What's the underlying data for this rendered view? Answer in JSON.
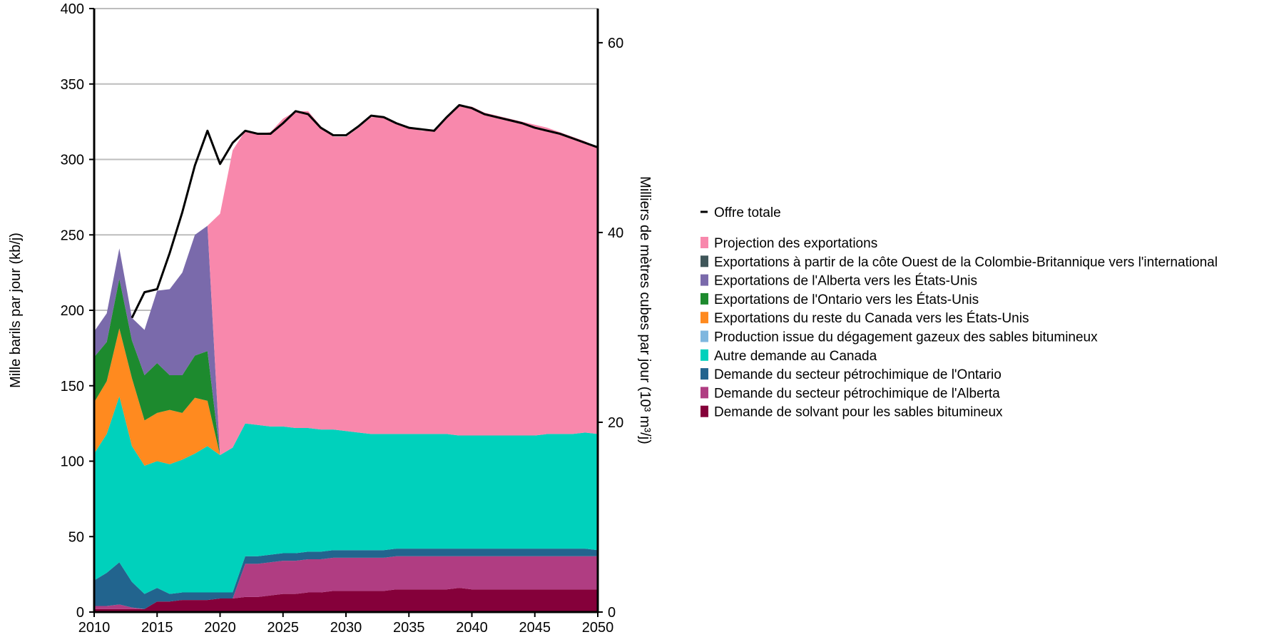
{
  "chart_data": {
    "type": "area",
    "title": "",
    "ylabel_left": "Mille barils par jour (kb/j)",
    "ylabel_right": "Milliers de mètres cubes par jour (10³ m³/j)",
    "ylim_left": [
      0,
      400
    ],
    "ylim_right": [
      0,
      63.6
    ],
    "xlim": [
      2010,
      2050
    ],
    "x_ticks": [
      "2010",
      "2015",
      "2020",
      "2025",
      "2030",
      "2035",
      "2040",
      "2045",
      "2050"
    ],
    "y_ticks_left": [
      "0",
      "50",
      "100",
      "150",
      "200",
      "250",
      "300",
      "350",
      "400"
    ],
    "y_ticks_right": [
      "0",
      "20",
      "40",
      "60"
    ],
    "grid": "horizontal",
    "legend_position": "right",
    "x": [
      2010,
      2011,
      2012,
      2013,
      2014,
      2015,
      2016,
      2017,
      2018,
      2019,
      2020,
      2021,
      2022,
      2023,
      2024,
      2025,
      2026,
      2027,
      2028,
      2029,
      2030,
      2031,
      2032,
      2033,
      2034,
      2035,
      2036,
      2037,
      2038,
      2039,
      2040,
      2041,
      2042,
      2043,
      2044,
      2045,
      2046,
      2047,
      2048,
      2049,
      2050
    ],
    "series": [
      {
        "name": "Demande de solvant pour les sables bitumineux",
        "color": "#85003a",
        "values": [
          2,
          2,
          2,
          2,
          2,
          7,
          7,
          8,
          8,
          8,
          9,
          9,
          10,
          10,
          11,
          12,
          12,
          13,
          13,
          14,
          14,
          14,
          14,
          14,
          15,
          15,
          15,
          15,
          15,
          16,
          15,
          15,
          15,
          15,
          15,
          15,
          15,
          15,
          15,
          15,
          15
        ]
      },
      {
        "name": "Demande du secteur pétrochimique de l'Alberta",
        "color": "#b03d82",
        "values": [
          2,
          2,
          3,
          1,
          0,
          0,
          0,
          0,
          0,
          0,
          0,
          0,
          22,
          22,
          22,
          22,
          22,
          22,
          22,
          22,
          22,
          22,
          22,
          22,
          22,
          22,
          22,
          22,
          22,
          21,
          22,
          22,
          22,
          22,
          22,
          22,
          22,
          22,
          22,
          22,
          22
        ]
      },
      {
        "name": "Demande du secteur pétrochimique de l'Ontario",
        "color": "#22648e",
        "values": [
          17,
          22,
          28,
          17,
          10,
          9,
          5,
          5,
          5,
          5,
          4,
          4,
          5,
          5,
          5,
          5,
          5,
          5,
          5,
          5,
          5,
          5,
          5,
          5,
          5,
          5,
          5,
          5,
          5,
          5,
          5,
          5,
          5,
          5,
          5,
          5,
          5,
          5,
          5,
          5,
          4
        ]
      },
      {
        "name": "Autre demande au Canada",
        "color": "#00d1bc",
        "values": [
          84,
          92,
          110,
          90,
          85,
          84,
          86,
          88,
          92,
          97,
          91,
          96,
          88,
          87,
          85,
          84,
          83,
          82,
          81,
          80,
          79,
          78,
          77,
          77,
          76,
          76,
          76,
          76,
          76,
          75,
          75,
          75,
          75,
          75,
          75,
          75,
          76,
          76,
          76,
          77,
          77
        ]
      },
      {
        "name": "Production issue du dégagement gazeux des sables bitumineux",
        "color": "#7fb7df",
        "values": [
          0,
          0,
          0,
          0,
          0,
          0,
          0,
          0,
          0,
          0,
          0,
          0,
          0,
          0,
          0,
          0,
          0,
          0,
          0,
          0,
          0,
          0,
          0,
          0,
          0,
          0,
          0,
          0,
          0,
          0,
          0,
          0,
          0,
          0,
          0,
          0,
          0,
          0,
          0,
          0,
          0
        ]
      },
      {
        "name": "Exportations du reste du Canada vers les États-Unis",
        "color": "#ff8a1f",
        "values": [
          34,
          35,
          45,
          45,
          30,
          32,
          36,
          31,
          37,
          30,
          0,
          0,
          0,
          0,
          0,
          0,
          0,
          0,
          0,
          0,
          0,
          0,
          0,
          0,
          0,
          0,
          0,
          0,
          0,
          0,
          0,
          0,
          0,
          0,
          0,
          0,
          0,
          0,
          0,
          0,
          0
        ]
      },
      {
        "name": "Exportations de l'Ontario vers les États-Unis",
        "color": "#1d8a2e",
        "values": [
          30,
          26,
          33,
          25,
          30,
          33,
          23,
          25,
          28,
          33,
          0,
          0,
          0,
          0,
          0,
          0,
          0,
          0,
          0,
          0,
          0,
          0,
          0,
          0,
          0,
          0,
          0,
          0,
          0,
          0,
          0,
          0,
          0,
          0,
          0,
          0,
          0,
          0,
          0,
          0,
          0
        ]
      },
      {
        "name": "Exportations de l'Alberta vers les États-Unis",
        "color": "#7a6aab",
        "values": [
          17,
          19,
          20,
          15,
          30,
          48,
          57,
          68,
          80,
          83,
          0,
          0,
          0,
          0,
          0,
          0,
          0,
          0,
          0,
          0,
          0,
          0,
          0,
          0,
          0,
          0,
          0,
          0,
          0,
          0,
          0,
          0,
          0,
          0,
          0,
          0,
          0,
          0,
          0,
          0,
          0
        ]
      },
      {
        "name": "Exportations à partir de la côte Ouest de la Colombie-Britannique vers l'international",
        "color": "#3f5659",
        "values": [
          0,
          0,
          0,
          0,
          0,
          0,
          0,
          0,
          0,
          0,
          0,
          0,
          0,
          0,
          0,
          0,
          0,
          0,
          0,
          0,
          0,
          0,
          0,
          0,
          0,
          0,
          0,
          0,
          0,
          0,
          0,
          0,
          0,
          0,
          0,
          0,
          0,
          0,
          0,
          0,
          0
        ]
      },
      {
        "name": "Projection des exportations",
        "color": "#f888ac",
        "values": [
          0,
          0,
          0,
          0,
          0,
          0,
          0,
          0,
          0,
          0,
          160,
          197,
          194,
          193,
          195,
          204,
          210,
          210,
          201,
          194,
          195,
          202,
          210,
          210,
          206,
          203,
          201,
          201,
          211,
          219,
          218,
          214,
          212,
          210,
          208,
          206,
          203,
          200,
          197,
          193,
          190
        ]
      }
    ],
    "total_supply": {
      "name": "Offre totale",
      "color": "#000000",
      "x": [
        2013,
        2014,
        2015,
        2016,
        2017,
        2018,
        2019,
        2020,
        2021,
        2022,
        2023,
        2024,
        2025,
        2026,
        2027,
        2028,
        2029,
        2030,
        2031,
        2032,
        2033,
        2034,
        2035,
        2036,
        2037,
        2038,
        2039,
        2040,
        2041,
        2042,
        2043,
        2044,
        2045,
        2046,
        2047,
        2048,
        2049,
        2050
      ],
      "values": [
        195,
        212,
        214,
        238,
        265,
        296,
        319,
        297,
        311,
        319,
        317,
        317,
        324,
        332,
        330,
        321,
        316,
        316,
        322,
        329,
        328,
        324,
        321,
        320,
        319,
        328,
        336,
        334,
        330,
        328,
        326,
        324,
        321,
        319,
        317,
        314,
        311,
        308
      ]
    }
  }
}
